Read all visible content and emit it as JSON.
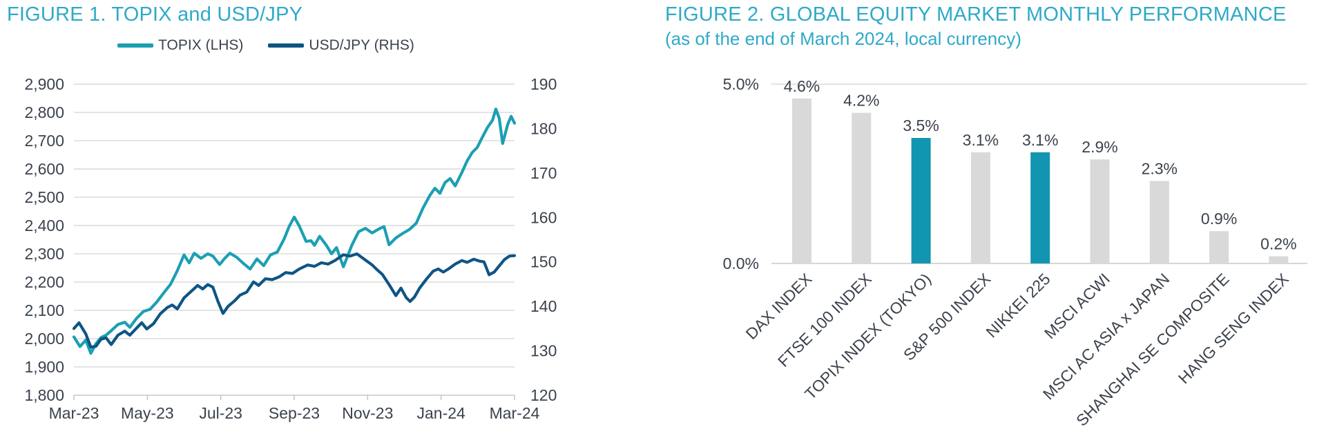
{
  "page": {
    "background": "#ffffff",
    "accent_teal": "#2EA9C9"
  },
  "chart_data": [
    {
      "type": "line",
      "title": "FIGURE 1. TOPIX and USD/JPY",
      "title_color": "#2EA9C9",
      "legend_position": "top-center",
      "grid": true,
      "x_ticklabels": [
        "Mar-23",
        "May-23",
        "Jul-23",
        "Sep-23",
        "Nov-23",
        "Jan-24",
        "Mar-24"
      ],
      "x_domain": [
        0,
        13
      ],
      "x_domain_note": "months since Mar-2023; 13 = end of Mar-2024",
      "y_left": {
        "min": 1800,
        "max": 2900,
        "step": 100,
        "format": "thousands"
      },
      "y_right": {
        "min": 120,
        "max": 190,
        "step": 10
      },
      "series": [
        {
          "name": "TOPIX (LHS)",
          "axis": "left",
          "color": "#1C9FB2",
          "x": [
            0,
            0.18,
            0.35,
            0.5,
            0.65,
            0.8,
            0.95,
            1.1,
            1.3,
            1.5,
            1.65,
            1.85,
            2.05,
            2.25,
            2.45,
            2.65,
            2.85,
            3.05,
            3.25,
            3.4,
            3.55,
            3.75,
            3.95,
            4.1,
            4.3,
            4.45,
            4.6,
            4.8,
            5,
            5.2,
            5.4,
            5.6,
            5.8,
            6,
            6.2,
            6.35,
            6.5,
            6.65,
            6.85,
            7,
            7.1,
            7.25,
            7.45,
            7.6,
            7.75,
            7.95,
            8.2,
            8.4,
            8.6,
            8.8,
            9,
            9.15,
            9.3,
            9.5,
            9.7,
            9.9,
            10.1,
            10.3,
            10.5,
            10.65,
            10.8,
            10.95,
            11.1,
            11.25,
            11.45,
            11.6,
            11.75,
            11.9,
            12.05,
            12.2,
            12.35,
            12.45,
            12.55,
            12.65,
            12.8,
            12.9,
            13
          ],
          "values": [
            2006,
            1972,
            1995,
            1948,
            1982,
            2004,
            2012,
            2028,
            2050,
            2058,
            2040,
            2072,
            2096,
            2104,
            2130,
            2162,
            2192,
            2240,
            2296,
            2268,
            2302,
            2284,
            2300,
            2292,
            2262,
            2284,
            2302,
            2288,
            2266,
            2246,
            2282,
            2258,
            2296,
            2306,
            2352,
            2396,
            2430,
            2398,
            2344,
            2346,
            2330,
            2362,
            2330,
            2300,
            2322,
            2254,
            2330,
            2378,
            2390,
            2374,
            2388,
            2396,
            2332,
            2356,
            2372,
            2386,
            2408,
            2462,
            2506,
            2532,
            2514,
            2552,
            2566,
            2540,
            2588,
            2628,
            2658,
            2676,
            2712,
            2746,
            2772,
            2812,
            2779,
            2690,
            2758,
            2786,
            2762
          ]
        },
        {
          "name": "USD/JPY (RHS)",
          "axis": "right",
          "color": "#0E5584",
          "x": [
            0,
            0.15,
            0.35,
            0.5,
            0.65,
            0.8,
            0.95,
            1.1,
            1.3,
            1.5,
            1.65,
            1.85,
            2,
            2.15,
            2.35,
            2.55,
            2.75,
            2.9,
            3.05,
            3.25,
            3.45,
            3.65,
            3.8,
            3.95,
            4.1,
            4.25,
            4.4,
            4.55,
            4.75,
            4.9,
            5.1,
            5.3,
            5.45,
            5.65,
            5.85,
            6.05,
            6.25,
            6.45,
            6.65,
            6.9,
            7.1,
            7.3,
            7.5,
            7.7,
            7.95,
            8.15,
            8.35,
            8.6,
            8.8,
            8.95,
            9.1,
            9.3,
            9.5,
            9.65,
            9.8,
            9.92,
            10.05,
            10.2,
            10.4,
            10.6,
            10.75,
            10.9,
            11.05,
            11.25,
            11.45,
            11.6,
            11.8,
            11.95,
            12.1,
            12.25,
            12.4,
            12.55,
            12.7,
            12.85,
            13
          ],
          "values": [
            135,
            136.3,
            133.8,
            130.8,
            131,
            132.6,
            132.9,
            131.4,
            133.5,
            134.4,
            133.5,
            135.1,
            136.3,
            134.9,
            136.1,
            138.3,
            139.7,
            140.3,
            139.4,
            141.9,
            143.3,
            144.7,
            143.9,
            144.9,
            144.3,
            141.1,
            138.4,
            140,
            141.3,
            142.5,
            143.2,
            145.5,
            144.7,
            146.2,
            146,
            146.6,
            147.6,
            147.4,
            148.4,
            149.3,
            149,
            149.8,
            149.5,
            150.3,
            151.6,
            151.3,
            151.8,
            150.4,
            149.3,
            148.2,
            147.2,
            144.9,
            142.4,
            144.1,
            142,
            141.1,
            142.1,
            144.1,
            146.1,
            147.9,
            148.4,
            147.7,
            148.4,
            149.5,
            150.3,
            149.9,
            150.6,
            150.2,
            150,
            147.1,
            147.7,
            149.1,
            150.5,
            151.3,
            151.4
          ]
        }
      ]
    },
    {
      "type": "bar",
      "title": "FIGURE 2. GLOBAL EQUITY MARKET MONTHLY PERFORMANCE",
      "subtitle": "(as of the end of March 2024, local currency)",
      "title_color": "#2EA9C9",
      "categories": [
        "DAX INDEX",
        "FTSE 100 INDEX",
        "TOPIX INDEX (TOKYO)",
        "S&P 500 INDEX",
        "NIKKEI 225",
        "MSCI ACWI",
        "MSCI AC ASIA x JAPAN",
        "SHANGHAI SE COMPOSITE",
        "HANG SENG INDEX"
      ],
      "values": [
        4.6,
        4.2,
        3.5,
        3.1,
        3.1,
        2.9,
        2.3,
        0.9,
        0.2
      ],
      "value_labels": [
        "4.6%",
        "4.2%",
        "3.5%",
        "3.1%",
        "3.1%",
        "2.9%",
        "2.3%",
        "0.9%",
        "0.2%"
      ],
      "highlight_indices": [
        2,
        4
      ],
      "bar_color_default": "#D9D9D9",
      "bar_color_highlight": "#1295B0",
      "ylim": [
        0,
        5
      ],
      "yticks": [
        {
          "value": 0,
          "label": "0.0%"
        },
        {
          "value": 5,
          "label": "5.0%"
        }
      ],
      "grid": true,
      "legend_position": "none"
    }
  ]
}
